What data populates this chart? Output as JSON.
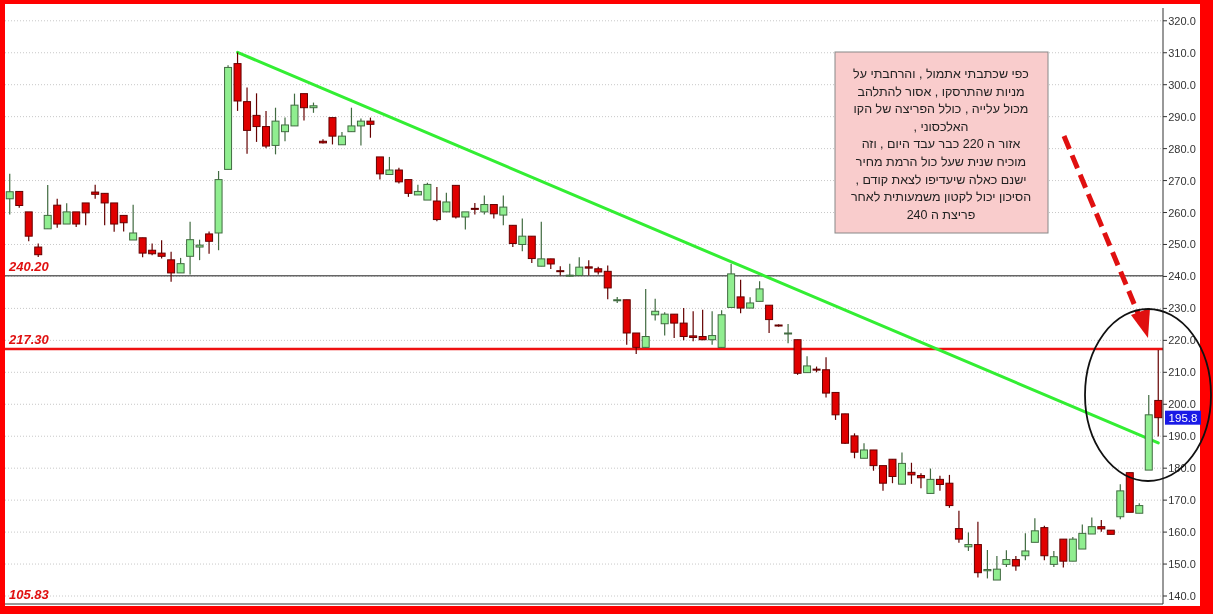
{
  "chart_data": {
    "type": "candlestick",
    "categories": [
      null,
      null,
      null,
      null,
      null,
      null,
      null,
      null,
      null,
      null,
      null,
      null,
      null,
      null,
      null,
      null,
      null,
      null,
      null,
      null,
      null,
      null,
      null,
      null,
      null,
      null,
      null,
      null,
      null,
      null,
      null,
      null,
      null,
      null,
      null,
      null,
      null,
      null,
      null,
      null,
      null,
      null,
      null,
      null,
      null,
      null,
      null,
      null,
      null,
      null,
      null,
      null,
      null,
      null,
      null,
      null,
      null,
      null,
      null,
      null,
      null,
      null,
      null,
      null,
      null,
      null,
      null,
      null,
      null,
      null,
      null,
      null,
      null,
      null,
      null,
      null,
      null,
      null,
      null,
      null,
      null,
      null,
      null,
      null,
      null,
      null,
      null,
      null,
      null,
      null,
      null,
      null,
      null,
      null,
      null,
      null,
      null,
      null,
      null,
      null,
      null,
      null,
      null,
      null,
      null,
      null,
      null,
      null,
      null,
      null,
      null,
      null,
      null,
      null,
      null,
      null,
      null,
      null,
      null,
      null,
      null,
      null
    ],
    "ohlc": [
      [
        264.3,
        272.1,
        259.4,
        266.5
      ],
      [
        266.6,
        266.6,
        261.5,
        262.2
      ],
      [
        260.2,
        260.2,
        251.0,
        252.6
      ],
      [
        249.2,
        250.3,
        246.1,
        246.8
      ],
      [
        254.9,
        268.6,
        254.9,
        259.1
      ],
      [
        262.3,
        264.3,
        255.2,
        256.4
      ],
      [
        256.4,
        262.9,
        256.4,
        260.2
      ],
      [
        260.2,
        260.2,
        255.5,
        256.4
      ],
      [
        263.0,
        263.0,
        256.0,
        259.9
      ],
      [
        266.4,
        268.7,
        264.3,
        265.7
      ],
      [
        266.0,
        266.0,
        256.0,
        263.0
      ],
      [
        263.0,
        263.0,
        254.0,
        256.4
      ],
      [
        259.1,
        259.1,
        254.1,
        256.8
      ],
      [
        251.4,
        262.4,
        251.4,
        253.6
      ],
      [
        252.1,
        252.1,
        246.0,
        247.3
      ],
      [
        248.2,
        250.3,
        246.6,
        247.1
      ],
      [
        247.3,
        251.3,
        245.6,
        246.3
      ],
      [
        245.2,
        247.7,
        238.3,
        241.1
      ],
      [
        241.1,
        245.8,
        241.1,
        244.0
      ],
      [
        246.3,
        257.1,
        240.6,
        251.5
      ],
      [
        249.2,
        251.5,
        245.1,
        249.8
      ],
      [
        253.3,
        254.1,
        247.1,
        251.0
      ],
      [
        253.6,
        273.0,
        248.2,
        270.3
      ],
      [
        273.5,
        306.1,
        273.5,
        305.4
      ],
      [
        306.6,
        310.1,
        291.8,
        294.9
      ],
      [
        294.7,
        299.1,
        278.4,
        285.7
      ],
      [
        290.4,
        297.3,
        282.1,
        286.9
      ],
      [
        286.9,
        291.8,
        280.1,
        280.8
      ],
      [
        281.0,
        292.8,
        278.2,
        288.6
      ],
      [
        285.3,
        289.7,
        282.3,
        287.4
      ],
      [
        287.1,
        297.2,
        287.1,
        293.6
      ],
      [
        297.2,
        297.2,
        288.8,
        292.8
      ],
      [
        292.8,
        294.4,
        291.2,
        293.4
      ],
      [
        282.3,
        282.9,
        281.6,
        281.8
      ],
      [
        289.7,
        289.7,
        281.3,
        283.9
      ],
      [
        281.2,
        285.2,
        281.2,
        283.9
      ],
      [
        285.3,
        292.8,
        285.3,
        287.1
      ],
      [
        287.1,
        289.4,
        281.0,
        288.6
      ],
      [
        288.6,
        289.7,
        283.4,
        287.6
      ],
      [
        277.4,
        277.4,
        270.3,
        272.1
      ],
      [
        271.9,
        277.4,
        271.9,
        273.3
      ],
      [
        273.3,
        274.0,
        269.1,
        269.6
      ],
      [
        270.3,
        270.3,
        264.9,
        266.0
      ],
      [
        265.5,
        268.7,
        265.5,
        266.6
      ],
      [
        263.9,
        269.3,
        263.9,
        268.8
      ],
      [
        263.6,
        268.0,
        257.3,
        257.8
      ],
      [
        260.2,
        266.2,
        260.2,
        263.3
      ],
      [
        268.5,
        268.5,
        258.1,
        258.6
      ],
      [
        258.6,
        260.2,
        254.7,
        260.2
      ],
      [
        261.3,
        263.0,
        259.4,
        261.0
      ],
      [
        260.2,
        265.3,
        259.4,
        262.5
      ],
      [
        262.5,
        262.5,
        258.1,
        259.6
      ],
      [
        259.2,
        265.3,
        256.0,
        261.7
      ],
      [
        256.0,
        256.0,
        249.2,
        250.3
      ],
      [
        250.0,
        258.1,
        247.9,
        252.6
      ],
      [
        252.6,
        252.6,
        244.2,
        245.6
      ],
      [
        243.2,
        257.1,
        243.2,
        245.5
      ],
      [
        245.5,
        245.5,
        242.3,
        243.9
      ],
      [
        241.8,
        243.2,
        240.3,
        241.6
      ],
      [
        240.2,
        244.0,
        240.0,
        240.4
      ],
      [
        240.3,
        246.0,
        240.3,
        242.9
      ],
      [
        243.0,
        245.1,
        240.3,
        242.6
      ],
      [
        242.4,
        243.0,
        240.6,
        241.4
      ],
      [
        241.6,
        243.4,
        232.9,
        236.4
      ],
      [
        232.4,
        233.6,
        231.7,
        232.7
      ],
      [
        232.7,
        232.7,
        218.6,
        222.3
      ],
      [
        222.3,
        222.3,
        215.7,
        217.8
      ],
      [
        217.8,
        236.1,
        217.8,
        221.2
      ],
      [
        228.0,
        233.0,
        226.2,
        229.1
      ],
      [
        225.2,
        228.8,
        221.5,
        228.2
      ],
      [
        228.2,
        228.2,
        220.7,
        225.4
      ],
      [
        225.4,
        230.1,
        220.0,
        221.2
      ],
      [
        221.4,
        229.1,
        219.7,
        220.9
      ],
      [
        221.2,
        229.6,
        220.0,
        220.2
      ],
      [
        220.2,
        229.1,
        218.6,
        221.5
      ],
      [
        217.8,
        229.4,
        217.8,
        228.0
      ],
      [
        230.3,
        244.0,
        230.3,
        240.8
      ],
      [
        233.6,
        239.0,
        228.5,
        230.1
      ],
      [
        230.1,
        233.5,
        230.1,
        231.7
      ],
      [
        232.2,
        238.5,
        232.2,
        236.1
      ],
      [
        231.0,
        231.0,
        222.3,
        226.5
      ],
      [
        224.8,
        225.0,
        224.3,
        224.5
      ],
      [
        222.0,
        225.1,
        219.1,
        222.3
      ],
      [
        220.2,
        220.2,
        209.2,
        209.7
      ],
      [
        209.9,
        215.0,
        209.9,
        212.0
      ],
      [
        211.0,
        211.8,
        210.0,
        210.8
      ],
      [
        210.8,
        214.7,
        202.1,
        203.5
      ],
      [
        203.7,
        203.7,
        195.1,
        196.7
      ],
      [
        197.0,
        197.0,
        187.6,
        187.8
      ],
      [
        190.1,
        190.9,
        183.1,
        185.0
      ],
      [
        183.1,
        187.8,
        183.1,
        185.7
      ],
      [
        185.7,
        185.7,
        179.2,
        180.8
      ],
      [
        180.8,
        180.8,
        172.9,
        175.3
      ],
      [
        182.8,
        182.8,
        175.3,
        177.4
      ],
      [
        175.0,
        184.9,
        175.0,
        181.5
      ],
      [
        178.7,
        181.7,
        175.1,
        177.9
      ],
      [
        177.7,
        178.4,
        173.7,
        177.0
      ],
      [
        172.1,
        179.9,
        172.1,
        176.5
      ],
      [
        176.5,
        177.6,
        172.9,
        174.9
      ],
      [
        175.3,
        177.9,
        167.6,
        168.3
      ],
      [
        161.1,
        166.7,
        156.7,
        157.8
      ],
      [
        155.4,
        159.9,
        154.1,
        156.1
      ],
      [
        156.1,
        163.2,
        145.8,
        147.3
      ],
      [
        147.9,
        154.4,
        145.5,
        148.3
      ],
      [
        145.0,
        152.5,
        145.0,
        148.4
      ],
      [
        149.9,
        154.3,
        149.1,
        151.4
      ],
      [
        151.4,
        152.5,
        147.9,
        149.4
      ],
      [
        152.6,
        159.6,
        151.2,
        154.1
      ],
      [
        156.8,
        164.3,
        156.8,
        160.4
      ],
      [
        161.4,
        162.0,
        151.2,
        152.6
      ],
      [
        149.9,
        154.1,
        149.1,
        152.3
      ],
      [
        157.8,
        157.8,
        148.9,
        150.9
      ],
      [
        150.9,
        158.5,
        150.9,
        157.8
      ],
      [
        154.7,
        162.4,
        154.7,
        159.6
      ],
      [
        159.4,
        164.6,
        159.4,
        161.7
      ],
      [
        161.7,
        163.8,
        160.1,
        161.0
      ],
      [
        160.6,
        160.6,
        159.3,
        159.3
      ],
      [
        164.8,
        175.0,
        164.0,
        172.9
      ],
      [
        178.6,
        178.6,
        166.2,
        166.2
      ],
      [
        165.9,
        169.0,
        165.9,
        168.3
      ],
      [
        179.4,
        202.9,
        179.4,
        196.7
      ],
      [
        201.2,
        217.0,
        189.9,
        195.8
      ]
    ],
    "colors": [
      "#90ee90",
      "#e00000",
      "#e00000",
      "#e00000",
      "#90ee90",
      "#e00000",
      "#90ee90",
      "#e00000",
      "#e00000",
      "#e00000",
      "#e00000",
      "#e00000",
      "#e00000",
      "#90ee90",
      "#e00000",
      "#e00000",
      "#e00000",
      "#e00000",
      "#90ee90",
      "#90ee90",
      "#90ee90",
      "#e00000",
      "#90ee90",
      "#90ee90",
      "#e00000",
      "#e00000",
      "#e00000",
      "#e00000",
      "#90ee90",
      "#90ee90",
      "#90ee90",
      "#e00000",
      "#90ee90",
      "#e00000",
      "#e00000",
      "#90ee90",
      "#90ee90",
      "#90ee90",
      "#e00000",
      "#e00000",
      "#90ee90",
      "#e00000",
      "#e00000",
      "#90ee90",
      "#90ee90",
      "#e00000",
      "#90ee90",
      "#e00000",
      "#90ee90",
      "#e00000",
      "#90ee90",
      "#e00000",
      "#90ee90",
      "#e00000",
      "#90ee90",
      "#e00000",
      "#90ee90",
      "#e00000",
      "#e00000",
      "#90ee90",
      "#90ee90",
      "#e00000",
      "#e00000",
      "#e00000",
      "#90ee90",
      "#e00000",
      "#e00000",
      "#90ee90",
      "#90ee90",
      "#90ee90",
      "#e00000",
      "#e00000",
      "#e00000",
      "#e00000",
      "#90ee90",
      "#90ee90",
      "#90ee90",
      "#e00000",
      "#90ee90",
      "#90ee90",
      "#e00000",
      "#e00000",
      "#90ee90",
      "#e00000",
      "#90ee90",
      "#e00000",
      "#e00000",
      "#e00000",
      "#e00000",
      "#e00000",
      "#90ee90",
      "#e00000",
      "#e00000",
      "#e00000",
      "#90ee90",
      "#e00000",
      "#e00000",
      "#90ee90",
      "#e00000",
      "#e00000",
      "#e00000",
      "#90ee90",
      "#e00000",
      "#90ee90",
      "#90ee90",
      "#90ee90",
      "#e00000",
      "#90ee90",
      "#90ee90",
      "#e00000",
      "#90ee90",
      "#e00000",
      "#90ee90",
      "#90ee90",
      "#90ee90",
      "#e00000",
      "#e00000",
      "#90ee90",
      "#e00000",
      "#90ee90",
      "#90ee90",
      "#e00000"
    ],
    "series": [
      {
        "type": "line",
        "color": "#33ee33",
        "values": [
          null,
          null,
          null,
          null,
          null,
          null,
          null,
          null,
          null,
          null,
          null,
          null,
          null,
          null,
          null,
          null,
          null,
          null,
          null,
          null,
          null,
          null,
          null,
          null,
          310.1,
          null,
          null,
          null,
          null,
          null,
          null,
          null,
          null,
          null,
          null,
          null,
          null,
          null,
          null,
          null,
          null,
          null,
          null,
          null,
          null,
          null,
          null,
          null,
          null,
          null,
          null,
          null,
          null,
          null,
          null,
          null,
          null,
          null,
          null,
          null,
          null,
          null,
          null,
          null,
          null,
          null,
          null,
          null,
          null,
          null,
          null,
          null,
          null,
          null,
          null,
          null,
          null,
          null,
          null,
          null,
          null,
          null,
          null,
          null,
          null,
          null,
          null,
          null,
          null,
          null,
          null,
          null,
          null,
          null,
          null,
          null,
          null,
          null,
          null,
          null,
          null,
          null,
          null,
          null,
          null,
          null,
          null,
          null,
          null,
          null,
          null,
          null,
          null,
          null,
          null,
          null,
          null,
          null,
          null,
          null,
          null,
          187.9
        ]
      }
    ],
    "ylim": [
      137.5,
      324
    ],
    "yticks": [
      {
        "value": 140,
        "label": "140.0"
      },
      {
        "value": 150,
        "label": "150.0"
      },
      {
        "value": 160,
        "label": "160.0"
      },
      {
        "value": 170,
        "label": "170.0"
      },
      {
        "value": 180,
        "label": "180.0"
      },
      {
        "value": 190,
        "label": "190.0"
      },
      {
        "value": 200,
        "label": "200.0"
      },
      {
        "value": 210,
        "label": "210.0"
      },
      {
        "value": 220,
        "label": "220.0"
      },
      {
        "value": 230,
        "label": "230.0"
      },
      {
        "value": 240,
        "label": "240.0"
      },
      {
        "value": 250,
        "label": "250.0"
      },
      {
        "value": 260,
        "label": "260.0"
      },
      {
        "value": 270,
        "label": "270.0"
      },
      {
        "value": 280,
        "label": "280.0"
      },
      {
        "value": 290,
        "label": "290.0"
      },
      {
        "value": 300,
        "label": "300.0"
      },
      {
        "value": 310,
        "label": "310.0"
      },
      {
        "value": 320,
        "label": "320.0"
      }
    ],
    "grid": "y",
    "ref_lines": [
      {
        "axis": "y",
        "value": 240.2,
        "label": "240.20",
        "color": "#666666"
      },
      {
        "axis": "y",
        "value": 217.3,
        "label": "217.30",
        "color": "#ee1111"
      }
    ],
    "annotations": [
      "כפי שכתבתי אתמול , והרחבתי על\nמניות שהתרסקו , אסור להתלהב\nמכול עלייה , כולל  הפריצה  של הקו\nהאלכסוני ,\nאזור ה 220 כבר עבד היום , וזה\nמוכיח שנית שעל כול הרמת מחיר\nישנם כאלה שיעדיפו לצאת קודם ,\nהסיכון יכול לקטון משמעותית לאחר\nפריצת ה 240",
      "105.83",
      {
        "text": "195.8",
        "y": 195.8
      }
    ]
  }
}
